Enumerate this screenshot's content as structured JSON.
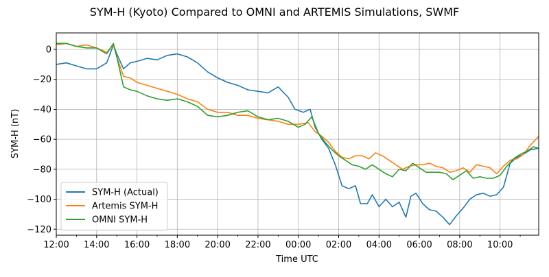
{
  "chart_data": {
    "type": "line",
    "title": "SYM-H (Kyoto) Compared to OMNI and ARTEMIS Simulations, SWMF",
    "xlabel": "Time UTC",
    "ylabel": "SYM-H (nT)",
    "x_unit": "hours from 12:00",
    "xlim": [
      "12:00",
      "11:55"
    ],
    "ylim": [
      -124,
      11
    ],
    "x_ticks": [
      "12:00",
      "14:00",
      "16:00",
      "18:00",
      "20:00",
      "22:00",
      "00:00",
      "02:00",
      "04:00",
      "06:00",
      "08:00",
      "10:00"
    ],
    "y_ticks": [
      0,
      -20,
      -40,
      -60,
      -80,
      -100,
      -120
    ],
    "grid": true,
    "legend_position": "lower-left",
    "series": [
      {
        "name": "SYM-H (Actual)",
        "color": "#1f77b4",
        "points": [
          [
            "12:00",
            -10
          ],
          [
            "12:30",
            -9
          ],
          [
            "13:00",
            -11
          ],
          [
            "13:30",
            -13
          ],
          [
            "14:00",
            -13
          ],
          [
            "14:30",
            -9
          ],
          [
            "14:50",
            3
          ],
          [
            "15:00",
            -3
          ],
          [
            "15:20",
            -13
          ],
          [
            "15:40",
            -9
          ],
          [
            "16:00",
            -8
          ],
          [
            "16:30",
            -6
          ],
          [
            "17:00",
            -7
          ],
          [
            "17:30",
            -4
          ],
          [
            "18:00",
            -3
          ],
          [
            "18:30",
            -5
          ],
          [
            "19:00",
            -9
          ],
          [
            "19:30",
            -15
          ],
          [
            "20:00",
            -19
          ],
          [
            "20:30",
            -22
          ],
          [
            "21:00",
            -24
          ],
          [
            "21:30",
            -27
          ],
          [
            "22:00",
            -28
          ],
          [
            "22:30",
            -29
          ],
          [
            "23:00",
            -25
          ],
          [
            "23:30",
            -32
          ],
          [
            "23:50",
            -40
          ],
          [
            "00:15",
            -42
          ],
          [
            "00:35",
            -40
          ],
          [
            "00:50",
            -52
          ],
          [
            "01:10",
            -60
          ],
          [
            "01:30",
            -66
          ],
          [
            "01:50",
            -77
          ],
          [
            "02:10",
            -91
          ],
          [
            "02:30",
            -93
          ],
          [
            "02:50",
            -91
          ],
          [
            "03:05",
            -103
          ],
          [
            "03:25",
            -103
          ],
          [
            "03:40",
            -97
          ],
          [
            "04:00",
            -105
          ],
          [
            "04:20",
            -100
          ],
          [
            "04:40",
            -105
          ],
          [
            "05:00",
            -102
          ],
          [
            "05:20",
            -112
          ],
          [
            "05:35",
            -98
          ],
          [
            "05:50",
            -96
          ],
          [
            "06:10",
            -103
          ],
          [
            "06:30",
            -107
          ],
          [
            "06:50",
            -108
          ],
          [
            "07:10",
            -112
          ],
          [
            "07:30",
            -117
          ],
          [
            "07:50",
            -111
          ],
          [
            "08:10",
            -106
          ],
          [
            "08:30",
            -100
          ],
          [
            "08:50",
            -97
          ],
          [
            "09:10",
            -96
          ],
          [
            "09:30",
            -98
          ],
          [
            "09:50",
            -97
          ],
          [
            "10:10",
            -92
          ],
          [
            "10:30",
            -76
          ],
          [
            "10:50",
            -72
          ],
          [
            "11:10",
            -70
          ],
          [
            "11:30",
            -67
          ],
          [
            "11:55",
            -66
          ]
        ]
      },
      {
        "name": "Artemis SYM-H",
        "color": "#ff7f0e",
        "points": [
          [
            "12:00",
            3
          ],
          [
            "12:30",
            4
          ],
          [
            "13:00",
            2
          ],
          [
            "13:30",
            3
          ],
          [
            "14:00",
            1
          ],
          [
            "14:30",
            -2
          ],
          [
            "14:50",
            3
          ],
          [
            "15:00",
            -5
          ],
          [
            "15:20",
            -18
          ],
          [
            "15:40",
            -19
          ],
          [
            "16:00",
            -22
          ],
          [
            "16:30",
            -24
          ],
          [
            "17:00",
            -26
          ],
          [
            "17:30",
            -28
          ],
          [
            "18:00",
            -30
          ],
          [
            "18:30",
            -33
          ],
          [
            "19:00",
            -35
          ],
          [
            "19:30",
            -40
          ],
          [
            "20:00",
            -42
          ],
          [
            "20:30",
            -42
          ],
          [
            "21:00",
            -44
          ],
          [
            "21:30",
            -44
          ],
          [
            "22:00",
            -46
          ],
          [
            "22:30",
            -47
          ],
          [
            "23:00",
            -48
          ],
          [
            "23:30",
            -50
          ],
          [
            "00:00",
            -50
          ],
          [
            "00:30",
            -49
          ],
          [
            "00:50",
            -55
          ],
          [
            "01:10",
            -58
          ],
          [
            "01:30",
            -62
          ],
          [
            "01:50",
            -68
          ],
          [
            "02:10",
            -72
          ],
          [
            "02:30",
            -73
          ],
          [
            "02:50",
            -71
          ],
          [
            "03:10",
            -71
          ],
          [
            "03:30",
            -73
          ],
          [
            "03:50",
            -69
          ],
          [
            "04:10",
            -71
          ],
          [
            "04:30",
            -74
          ],
          [
            "04:50",
            -77
          ],
          [
            "05:10",
            -80
          ],
          [
            "05:30",
            -78
          ],
          [
            "05:50",
            -77
          ],
          [
            "06:10",
            -77
          ],
          [
            "06:30",
            -76
          ],
          [
            "06:50",
            -78
          ],
          [
            "07:10",
            -79
          ],
          [
            "07:30",
            -82
          ],
          [
            "07:50",
            -81
          ],
          [
            "08:10",
            -79
          ],
          [
            "08:30",
            -82
          ],
          [
            "08:50",
            -77
          ],
          [
            "09:10",
            -78
          ],
          [
            "09:30",
            -79
          ],
          [
            "09:50",
            -83
          ],
          [
            "10:10",
            -78
          ],
          [
            "10:30",
            -74
          ],
          [
            "10:50",
            -73
          ],
          [
            "11:10",
            -70
          ],
          [
            "11:30",
            -64
          ],
          [
            "11:55",
            -58
          ]
        ]
      },
      {
        "name": "OMNI SYM-H",
        "color": "#2ca02c",
        "points": [
          [
            "12:00",
            4
          ],
          [
            "12:30",
            4
          ],
          [
            "13:00",
            2
          ],
          [
            "13:30",
            1
          ],
          [
            "14:00",
            1
          ],
          [
            "14:30",
            -3
          ],
          [
            "14:50",
            4
          ],
          [
            "15:00",
            -5
          ],
          [
            "15:20",
            -25
          ],
          [
            "15:40",
            -27
          ],
          [
            "16:00",
            -28
          ],
          [
            "16:30",
            -31
          ],
          [
            "17:00",
            -33
          ],
          [
            "17:30",
            -34
          ],
          [
            "18:00",
            -33
          ],
          [
            "18:30",
            -35
          ],
          [
            "19:00",
            -38
          ],
          [
            "19:30",
            -44
          ],
          [
            "20:00",
            -45
          ],
          [
            "20:30",
            -44
          ],
          [
            "21:00",
            -42
          ],
          [
            "21:30",
            -41
          ],
          [
            "22:00",
            -45
          ],
          [
            "22:30",
            -47
          ],
          [
            "23:00",
            -46
          ],
          [
            "23:30",
            -48
          ],
          [
            "00:00",
            -52
          ],
          [
            "00:20",
            -50
          ],
          [
            "00:40",
            -45
          ],
          [
            "01:00",
            -56
          ],
          [
            "01:20",
            -62
          ],
          [
            "01:40",
            -67
          ],
          [
            "02:00",
            -71
          ],
          [
            "02:20",
            -74
          ],
          [
            "02:40",
            -77
          ],
          [
            "03:00",
            -78
          ],
          [
            "03:20",
            -80
          ],
          [
            "03:40",
            -77
          ],
          [
            "04:00",
            -80
          ],
          [
            "04:20",
            -83
          ],
          [
            "04:40",
            -85
          ],
          [
            "05:00",
            -80
          ],
          [
            "05:20",
            -81
          ],
          [
            "05:40",
            -76
          ],
          [
            "06:00",
            -79
          ],
          [
            "06:20",
            -82
          ],
          [
            "06:40",
            -82
          ],
          [
            "07:00",
            -82
          ],
          [
            "07:20",
            -83
          ],
          [
            "07:40",
            -87
          ],
          [
            "08:00",
            -84
          ],
          [
            "08:20",
            -81
          ],
          [
            "08:40",
            -86
          ],
          [
            "09:00",
            -85
          ],
          [
            "09:20",
            -86
          ],
          [
            "09:40",
            -86
          ],
          [
            "10:00",
            -84
          ],
          [
            "10:20",
            -78
          ],
          [
            "10:40",
            -73
          ],
          [
            "11:00",
            -70
          ],
          [
            "11:20",
            -68
          ],
          [
            "11:40",
            -65
          ],
          [
            "11:55",
            -66
          ]
        ]
      }
    ]
  }
}
